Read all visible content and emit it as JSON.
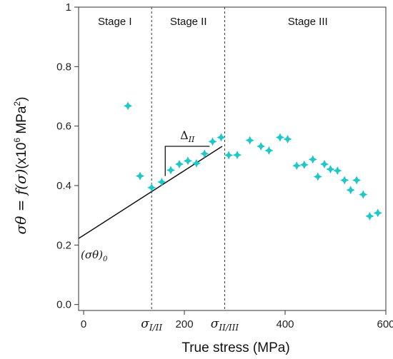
{
  "chart_data": {
    "type": "scatter",
    "xlabel": "True stress (MPa)",
    "ylabel": {
      "prefix": "σθ = ",
      "func": "f",
      "arg": "(σ)",
      "unit_start": "(x10",
      "unit_exp": "6",
      "unit_mid": " MPa",
      "unit_exp2": "2",
      "unit_end": ")"
    },
    "xlim": [
      -10,
      600
    ],
    "ylim": [
      -0.02,
      1.0
    ],
    "x_ticks": [
      0,
      200,
      400,
      600
    ],
    "y_ticks": [
      0.0,
      0.2,
      0.4,
      0.6,
      0.8,
      1.0
    ],
    "y_tick_labels": [
      "0.0",
      "0.2",
      "0.4",
      "0.6",
      "0.8",
      "1"
    ],
    "grid": false,
    "marker_color": "#1ec8c8",
    "line_color": "#111111",
    "stage_boundaries": [
      135,
      280
    ],
    "stages": [
      {
        "label": "Stage I",
        "x": 62
      },
      {
        "label": "Stage II",
        "x": 208
      },
      {
        "label": "Stage III",
        "x": 445
      }
    ],
    "boundary_labels": [
      {
        "base": "σ",
        "sub": "I/II",
        "x": 135
      },
      {
        "base": "σ",
        "sub": "II/III",
        "x": 280
      }
    ],
    "fit_line": {
      "x": [
        -10,
        275
      ],
      "y": [
        0.222,
        0.532
      ]
    },
    "slope_triangle": {
      "x1": 162,
      "x2": 250,
      "y_low": 0.432,
      "y_high": 0.532
    },
    "delta_label": {
      "base": "Δ",
      "sub": "II"
    },
    "intercept_label": {
      "text": "(σθ)",
      "sub": "0"
    },
    "points": [
      {
        "x": 88,
        "y": 0.668
      },
      {
        "x": 112,
        "y": 0.432
      },
      {
        "x": 135,
        "y": 0.393
      },
      {
        "x": 155,
        "y": 0.412
      },
      {
        "x": 173,
        "y": 0.452
      },
      {
        "x": 190,
        "y": 0.472
      },
      {
        "x": 207,
        "y": 0.483
      },
      {
        "x": 224,
        "y": 0.475
      },
      {
        "x": 240,
        "y": 0.507
      },
      {
        "x": 256,
        "y": 0.548
      },
      {
        "x": 273,
        "y": 0.562
      },
      {
        "x": 288,
        "y": 0.502
      },
      {
        "x": 305,
        "y": 0.503
      },
      {
        "x": 330,
        "y": 0.552
      },
      {
        "x": 352,
        "y": 0.532
      },
      {
        "x": 368,
        "y": 0.518
      },
      {
        "x": 390,
        "y": 0.562
      },
      {
        "x": 405,
        "y": 0.556
      },
      {
        "x": 423,
        "y": 0.467
      },
      {
        "x": 438,
        "y": 0.47
      },
      {
        "x": 455,
        "y": 0.488
      },
      {
        "x": 465,
        "y": 0.43
      },
      {
        "x": 478,
        "y": 0.472
      },
      {
        "x": 490,
        "y": 0.455
      },
      {
        "x": 504,
        "y": 0.45
      },
      {
        "x": 518,
        "y": 0.418
      },
      {
        "x": 530,
        "y": 0.385
      },
      {
        "x": 542,
        "y": 0.418
      },
      {
        "x": 555,
        "y": 0.37
      },
      {
        "x": 568,
        "y": 0.297
      },
      {
        "x": 584,
        "y": 0.308
      }
    ]
  }
}
